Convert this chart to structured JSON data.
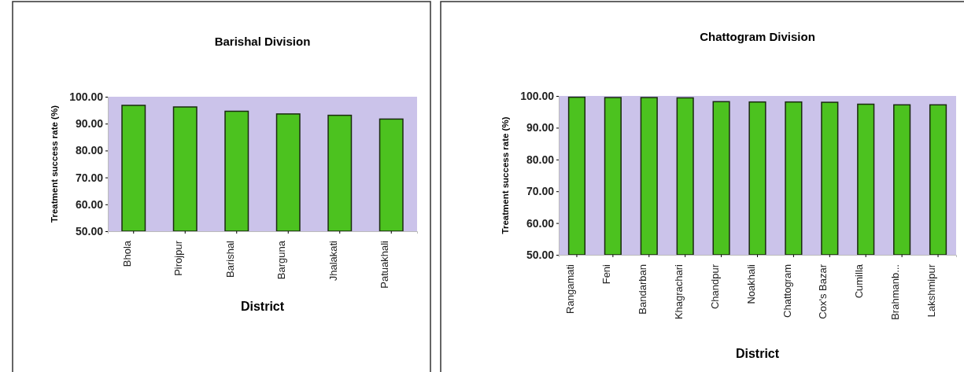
{
  "chart_data": [
    {
      "type": "bar",
      "title": "Barishal Division",
      "xlabel": "District",
      "ylabel": "Treatment success rate (%)",
      "categories": [
        "Bhola",
        "Pirojpur",
        "Barishal",
        "Barguna",
        "Jhalakati",
        "Patuakhali"
      ],
      "series": [
        {
          "color": "#4cc21f",
          "values": [
            96.8,
            96.2,
            94.6,
            93.6,
            93.1,
            91.7
          ]
        }
      ],
      "ylim": [
        50,
        100
      ],
      "yticks": [
        {
          "value": 50,
          "label": "50.00"
        },
        {
          "value": 60,
          "label": "60.00"
        },
        {
          "value": 70,
          "label": "70.00"
        },
        {
          "value": 80,
          "label": "80.00"
        },
        {
          "value": 90,
          "label": "90.00"
        },
        {
          "value": 100,
          "label": "100.00"
        }
      ],
      "grid": false
    },
    {
      "type": "bar",
      "title": "Chattogram Division",
      "xlabel": "District",
      "ylabel": "Treatment success rate (%)",
      "categories": [
        "Rangamati",
        "Feni",
        "Bandarban",
        "Khagrachari",
        "Chandpur",
        "Noakhali",
        "Chattogram",
        "Cox's Bazar",
        "Cumilla",
        "Brahmanb...",
        "Lakshmipur"
      ],
      "series": [
        {
          "color": "#4cc21f",
          "values": [
            99.6,
            99.5,
            99.5,
            99.4,
            98.2,
            98.1,
            98.1,
            98.0,
            97.4,
            97.2,
            97.2
          ]
        }
      ],
      "ylim": [
        50,
        100
      ],
      "yticks": [
        {
          "value": 50,
          "label": "50.00"
        },
        {
          "value": 60,
          "label": "60.00"
        },
        {
          "value": 70,
          "label": "70.00"
        },
        {
          "value": 80,
          "label": "80.00"
        },
        {
          "value": 90,
          "label": "90.00"
        },
        {
          "value": 100,
          "label": "100.00"
        }
      ],
      "grid": false
    }
  ]
}
